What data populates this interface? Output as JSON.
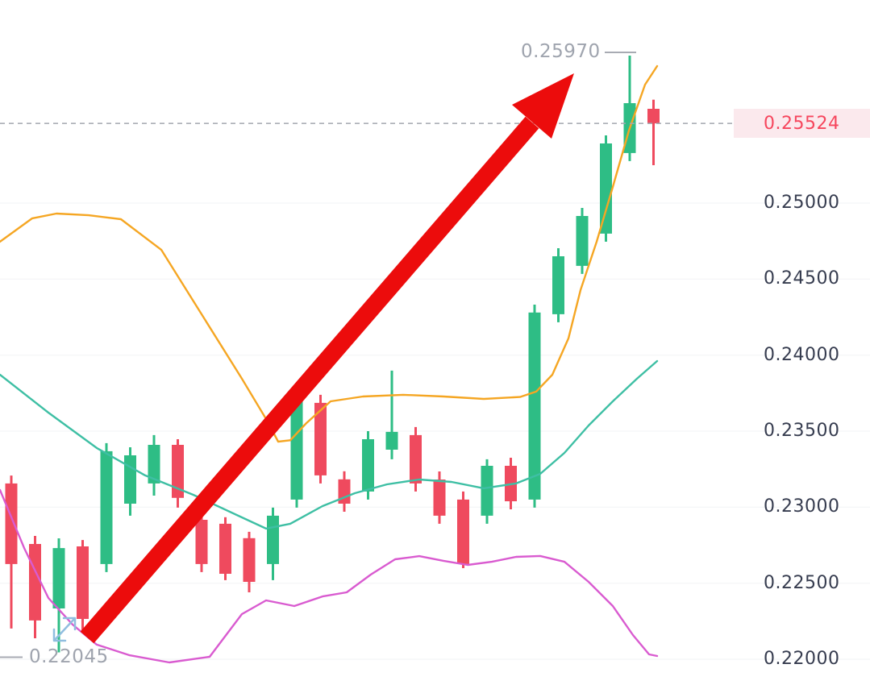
{
  "window": {
    "background": "#FFFFFF"
  },
  "colors": {
    "candle_up": "#2EBD85",
    "candle_down": "#EF4A5E",
    "grid": "#F2F3F6",
    "dashed_line": "#A2A6AF",
    "marker_dash": "#A8ABB3",
    "axis_text": "#363C4F",
    "marker_text": "#9FA4AE",
    "current_price_text": "#F6465D",
    "current_price_bg": "#FBE9ED",
    "arrow": "#EC0C0C",
    "double_arrow_icon": "#90BEDF"
  },
  "axis": {
    "side": "right",
    "ticks": [
      {
        "label": "0.25000",
        "value": 0.25
      },
      {
        "label": "0.24500",
        "value": 0.245
      },
      {
        "label": "0.24000",
        "value": 0.24
      },
      {
        "label": "0.23500",
        "value": 0.235
      },
      {
        "label": "0.23000",
        "value": 0.23
      },
      {
        "label": "0.22500",
        "value": 0.225
      },
      {
        "label": "0.22000",
        "value": 0.22
      }
    ],
    "current_price": {
      "label": "0.25524",
      "value": 0.25524
    }
  },
  "markers": {
    "high": {
      "label": "0.25970",
      "value": 0.2597
    },
    "low": {
      "label": "0.22045",
      "value": 0.22045
    }
  },
  "chart_data": {
    "type": "candlestick",
    "title": "",
    "ylim": [
      0.21829,
      0.26335
    ],
    "price_format_decimals": 5,
    "high_of_range": 0.2597,
    "low_of_range": 0.22045,
    "last_price": 0.25524,
    "candles_ohlc": [
      [
        0.23156,
        0.23208,
        0.22202,
        0.22626
      ],
      [
        0.22758,
        0.22811,
        0.22138,
        0.22255
      ],
      [
        0.22334,
        0.22795,
        0.22045,
        0.22731
      ],
      [
        0.22742,
        0.22784,
        0.22175,
        0.22265
      ],
      [
        0.22626,
        0.23421,
        0.22573,
        0.23368
      ],
      [
        0.23023,
        0.23394,
        0.22944,
        0.23341
      ],
      [
        0.23156,
        0.23474,
        0.23076,
        0.2341
      ],
      [
        0.2341,
        0.23447,
        0.22997,
        0.23061
      ],
      [
        0.22917,
        0.2297,
        0.22573,
        0.22626
      ],
      [
        0.22891,
        0.22934,
        0.2252,
        0.22562
      ],
      [
        0.22796,
        0.22838,
        0.2244,
        0.22509
      ],
      [
        0.22626,
        0.22997,
        0.2252,
        0.22944
      ],
      [
        0.2305,
        0.23792,
        0.22997,
        0.23739
      ],
      [
        0.23686,
        0.23739,
        0.23156,
        0.23209
      ],
      [
        0.23183,
        0.23236,
        0.2297,
        0.23023
      ],
      [
        0.23103,
        0.235,
        0.2305,
        0.23447
      ],
      [
        0.23378,
        0.23898,
        0.23315,
        0.23495
      ],
      [
        0.23474,
        0.23527,
        0.23103,
        0.23156
      ],
      [
        0.23182,
        0.23235,
        0.22891,
        0.22944
      ],
      [
        0.2305,
        0.23103,
        0.22599,
        0.22626
      ],
      [
        0.22944,
        0.23315,
        0.22891,
        0.23272
      ],
      [
        0.23272,
        0.23325,
        0.22986,
        0.23039
      ],
      [
        0.2305,
        0.24332,
        0.22997,
        0.2428
      ],
      [
        0.24269,
        0.24703,
        0.24216,
        0.2465
      ],
      [
        0.24587,
        0.24968,
        0.24534,
        0.24915
      ],
      [
        0.24799,
        0.25445,
        0.24746,
        0.25392
      ],
      [
        0.25329,
        0.2597,
        0.25276,
        0.25657
      ],
      [
        0.2562,
        0.2568,
        0.25249,
        0.25524
      ]
    ],
    "indicators": [
      {
        "name": "bollinger-upper",
        "color": "#F5A623",
        "points": [
          [
            0,
            0.24746
          ],
          [
            40,
            0.249
          ],
          [
            70,
            0.24931
          ],
          [
            110,
            0.2492
          ],
          [
            150,
            0.24894
          ],
          [
            200,
            0.24693
          ],
          [
            250,
            0.24269
          ],
          [
            300,
            0.23845
          ],
          [
            330,
            0.2358
          ],
          [
            345,
            0.23431
          ],
          [
            360,
            0.2344
          ],
          [
            380,
            0.23553
          ],
          [
            410,
            0.23696
          ],
          [
            450,
            0.23728
          ],
          [
            500,
            0.23739
          ],
          [
            550,
            0.23728
          ],
          [
            600,
            0.23712
          ],
          [
            645,
            0.23725
          ],
          [
            665,
            0.2376
          ],
          [
            685,
            0.23871
          ],
          [
            705,
            0.2411
          ],
          [
            720,
            0.24428
          ],
          [
            740,
            0.24746
          ],
          [
            760,
            0.25106
          ],
          [
            780,
            0.25477
          ],
          [
            800,
            0.25779
          ],
          [
            815,
            0.25901
          ]
        ]
      },
      {
        "name": "bollinger-middle",
        "color": "#3EBFA4",
        "points": [
          [
            0,
            0.23871
          ],
          [
            60,
            0.23622
          ],
          [
            120,
            0.23389
          ],
          [
            180,
            0.23209
          ],
          [
            240,
            0.23081
          ],
          [
            300,
            0.22933
          ],
          [
            330,
            0.22859
          ],
          [
            360,
            0.22891
          ],
          [
            400,
            0.23007
          ],
          [
            440,
            0.23092
          ],
          [
            480,
            0.2315
          ],
          [
            520,
            0.23182
          ],
          [
            560,
            0.23166
          ],
          [
            600,
            0.23124
          ],
          [
            640,
            0.23156
          ],
          [
            670,
            0.23219
          ],
          [
            700,
            0.23357
          ],
          [
            730,
            0.23537
          ],
          [
            760,
            0.23696
          ],
          [
            790,
            0.23845
          ],
          [
            815,
            0.23961
          ]
        ]
      },
      {
        "name": "bollinger-lower",
        "color": "#D95BD0",
        "points": [
          [
            0,
            0.23113
          ],
          [
            30,
            0.22731
          ],
          [
            60,
            0.22403
          ],
          [
            90,
            0.22228
          ],
          [
            120,
            0.22096
          ],
          [
            160,
            0.22027
          ],
          [
            210,
            0.21979
          ],
          [
            260,
            0.22016
          ],
          [
            300,
            0.22297
          ],
          [
            330,
            0.22387
          ],
          [
            365,
            0.2235
          ],
          [
            400,
            0.22413
          ],
          [
            430,
            0.2244
          ],
          [
            460,
            0.22557
          ],
          [
            490,
            0.22657
          ],
          [
            520,
            0.22678
          ],
          [
            550,
            0.22647
          ],
          [
            580,
            0.2262
          ],
          [
            610,
            0.22641
          ],
          [
            640,
            0.22673
          ],
          [
            670,
            0.22679
          ],
          [
            700,
            0.22641
          ],
          [
            730,
            0.22509
          ],
          [
            760,
            0.2235
          ],
          [
            785,
            0.22159
          ],
          [
            805,
            0.22032
          ],
          [
            815,
            0.22021
          ]
        ]
      }
    ],
    "annotations": [
      {
        "type": "trend-arrow",
        "direction": "up-right",
        "color": "#EC0C0C"
      },
      {
        "type": "double-arrow-icon",
        "direction": "ne-sw",
        "color": "#90BEDF"
      }
    ]
  }
}
